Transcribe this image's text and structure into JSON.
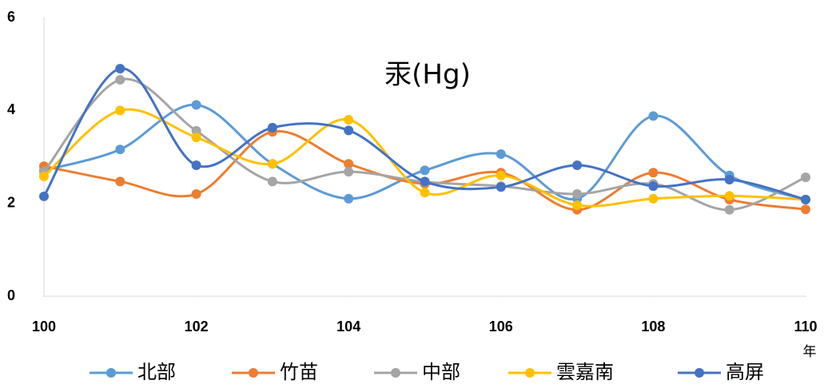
{
  "chart_data": {
    "type": "line",
    "title": "汞(Hg)",
    "x_label": "年",
    "x": [
      100,
      101,
      102,
      103,
      104,
      105,
      106,
      107,
      108,
      109,
      110
    ],
    "xlim": [
      100,
      110
    ],
    "xticks": [
      100,
      102,
      104,
      106,
      108,
      110
    ],
    "ylim": [
      0,
      6
    ],
    "yticks": [
      0,
      2,
      4,
      6
    ],
    "smooth": true,
    "legend": "bottom",
    "series": [
      {
        "name": "北部",
        "color": "#5B9BD5",
        "values": [
          2.71,
          3.16,
          4.12,
          2.85,
          2.1,
          2.71,
          3.06,
          2.1,
          3.88,
          2.6,
          2.08
        ]
      },
      {
        "name": "竹苗",
        "color": "#ED7D31",
        "values": [
          2.8,
          2.47,
          2.2,
          3.54,
          2.85,
          2.42,
          2.66,
          1.86,
          2.66,
          2.08,
          1.87
        ]
      },
      {
        "name": "中部",
        "color": "#A5A5A5",
        "values": [
          2.68,
          4.66,
          3.56,
          2.47,
          2.68,
          2.46,
          2.37,
          2.2,
          2.42,
          1.86,
          2.56
        ]
      },
      {
        "name": "雲嘉南",
        "color": "#FFC000",
        "values": [
          2.58,
          4.0,
          3.42,
          2.85,
          3.8,
          2.23,
          2.6,
          1.96,
          2.1,
          2.16,
          2.08
        ]
      },
      {
        "name": "高屏",
        "color": "#4472C4",
        "values": [
          2.15,
          4.9,
          2.82,
          3.63,
          3.57,
          2.47,
          2.35,
          2.82,
          2.37,
          2.51,
          2.08
        ]
      }
    ]
  }
}
